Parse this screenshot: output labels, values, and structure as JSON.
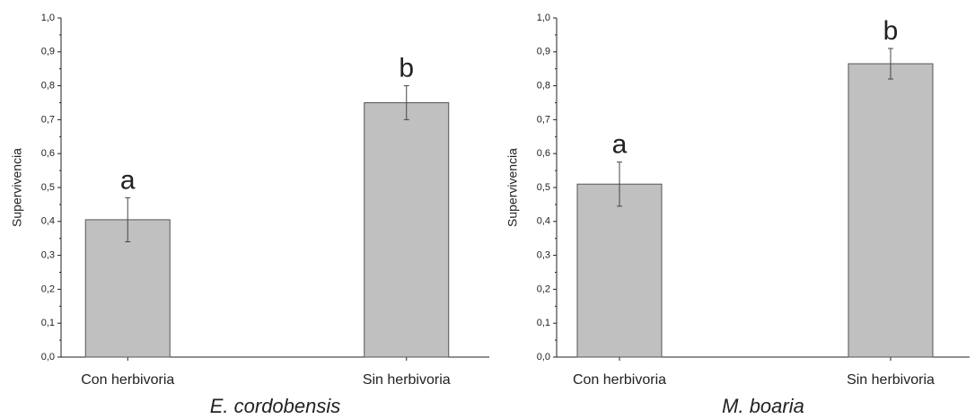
{
  "chart_data": [
    {
      "type": "bar",
      "title": "E. cordobensis",
      "ylabel": "Supervivencia",
      "categories": [
        "Con herbivoria",
        "Sin herbivoria"
      ],
      "values": [
        0.405,
        0.75
      ],
      "errors": [
        0.065,
        0.05
      ],
      "annotations": [
        "a",
        "b"
      ],
      "color": "#c0c0c0",
      "ylim": [
        0,
        1
      ],
      "yticks": [
        {
          "value": 0,
          "label": "0,0"
        },
        {
          "value": 0.1,
          "label": "0,1"
        },
        {
          "value": 0.2,
          "label": "0,2"
        },
        {
          "value": 0.3,
          "label": "0,3"
        },
        {
          "value": 0.4,
          "label": "0,4"
        },
        {
          "value": 0.5,
          "label": "0,5"
        },
        {
          "value": 0.6,
          "label": "0,6"
        },
        {
          "value": 0.7,
          "label": "0,7"
        },
        {
          "value": 0.8,
          "label": "0,8"
        },
        {
          "value": 0.9,
          "label": "0,9"
        },
        {
          "value": 1,
          "label": "1,0"
        }
      ]
    },
    {
      "type": "bar",
      "title": "M. boaria",
      "ylabel": "Supervivencia",
      "categories": [
        "Con herbivoria",
        "Sin herbivoria"
      ],
      "values": [
        0.51,
        0.865
      ],
      "errors": [
        0.065,
        0.045
      ],
      "annotations": [
        "a",
        "b"
      ],
      "color": "#c0c0c0",
      "ylim": [
        0,
        1
      ],
      "yticks": [
        {
          "value": 0,
          "label": "0,0"
        },
        {
          "value": 0.1,
          "label": "0,1"
        },
        {
          "value": 0.2,
          "label": "0,2"
        },
        {
          "value": 0.3,
          "label": "0,3"
        },
        {
          "value": 0.4,
          "label": "0,4"
        },
        {
          "value": 0.5,
          "label": "0,5"
        },
        {
          "value": 0.6,
          "label": "0,6"
        },
        {
          "value": 0.7,
          "label": "0,7"
        },
        {
          "value": 0.8,
          "label": "0,8"
        },
        {
          "value": 0.9,
          "label": "0,9"
        },
        {
          "value": 1,
          "label": "1,0"
        }
      ]
    }
  ]
}
